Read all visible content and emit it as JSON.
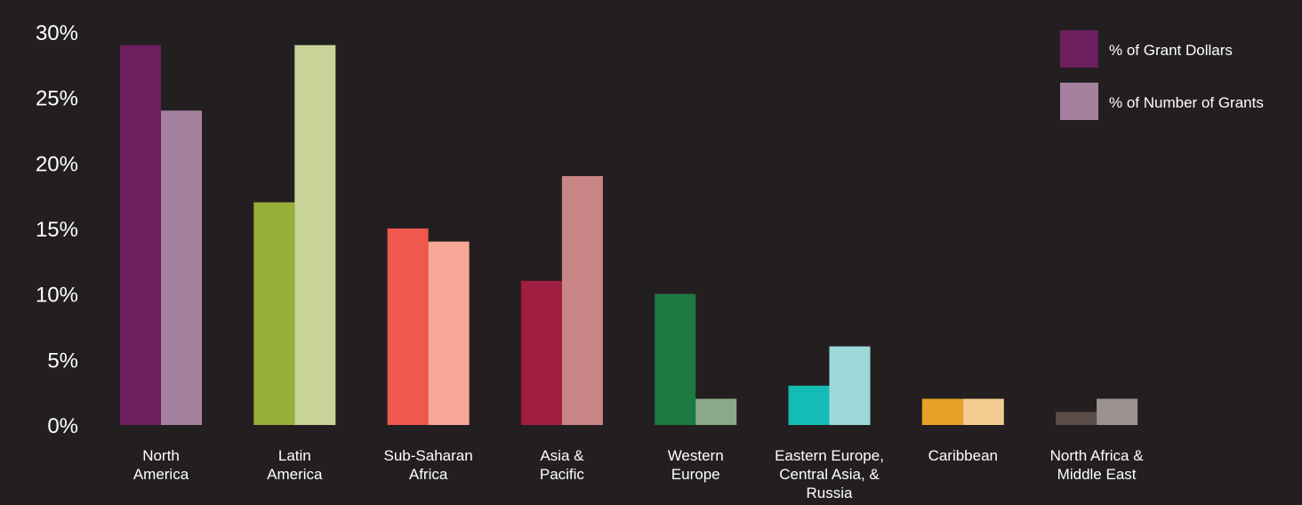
{
  "chart_data": {
    "type": "bar",
    "title": "",
    "xlabel": "",
    "ylabel": "",
    "ylim": [
      0,
      30
    ],
    "yticks": [
      "0%",
      "5%",
      "10%",
      "15%",
      "20%",
      "25%",
      "30%"
    ],
    "categories": [
      "North America",
      "Latin America",
      "Sub-Saharan Africa",
      "Asia & Pacific",
      "Western Europe",
      "Eastern Europe, Central Asia, & Russia",
      "Caribbean",
      "North Africa & Middle East"
    ],
    "category_labels": [
      [
        "North",
        "America"
      ],
      [
        "Latin",
        "America"
      ],
      [
        "Sub-Saharan",
        "Africa"
      ],
      [
        "Asia &",
        "Pacific"
      ],
      [
        "Western",
        "Europe"
      ],
      [
        "Eastern Europe,",
        "Central Asia, &",
        "Russia"
      ],
      [
        "Caribbean"
      ],
      [
        "North Africa &",
        "Middle East"
      ]
    ],
    "series": [
      {
        "name": "% of Grant Dollars",
        "values": [
          29,
          17,
          15,
          11,
          10,
          3,
          2,
          1
        ],
        "colors": [
          "#6b1f5e",
          "#98ae3a",
          "#f0574d",
          "#a11d41",
          "#1e7a43",
          "#15bcb5",
          "#e8a226",
          "#5a4c48"
        ]
      },
      {
        "name": "% of Number of Grants",
        "values": [
          24,
          29,
          14,
          19,
          2,
          6,
          2,
          2
        ],
        "colors": [
          "#a6809f",
          "#c8d497",
          "#f8a896",
          "#c98586",
          "#8ba988",
          "#9ed8d8",
          "#f2cc8f",
          "#9c9391"
        ]
      }
    ],
    "legend": {
      "position": "top-right",
      "colors": [
        "#6b1f5e",
        "#a6809f"
      ]
    },
    "grid": false,
    "background": "#231f20"
  }
}
